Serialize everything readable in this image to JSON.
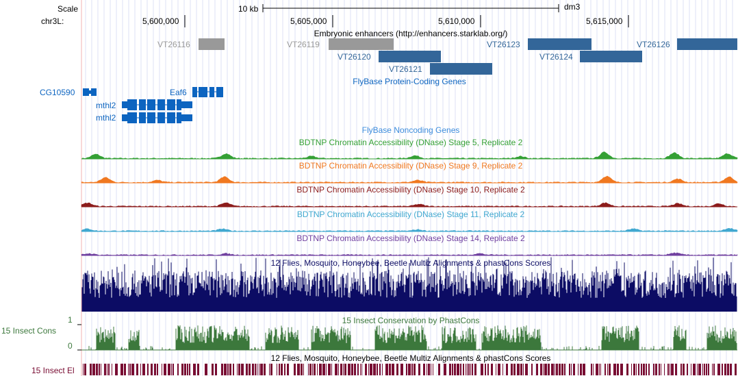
{
  "ruler": {
    "scale_label": "Scale",
    "chrom_label": "chr3L:",
    "scale_bar_label": "10 kb",
    "assembly": "dm3",
    "ticks": [
      "5,600,000",
      "5,605,000",
      "5,610,000",
      "5,615,000"
    ]
  },
  "tracks": {
    "enhancers": {
      "title": "Embryonic enhancers (http://enhancers.starklab.org/)",
      "features": [
        {
          "name": "VT26116",
          "color": "#999999"
        },
        {
          "name": "VT26119",
          "color": "#999999"
        },
        {
          "name": "VT26120",
          "color": "#336699"
        },
        {
          "name": "VT26121",
          "color": "#336699"
        },
        {
          "name": "VT26123",
          "color": "#336699"
        },
        {
          "name": "VT26124",
          "color": "#336699"
        },
        {
          "name": "VT26126",
          "color": "#336699"
        }
      ]
    },
    "protein_genes": {
      "title": "FlyBase Protein-Coding Genes",
      "color": "#0c64c0",
      "genes": [
        {
          "name": "CG10590"
        },
        {
          "name": "Eaf6"
        },
        {
          "name": "mthl2"
        },
        {
          "name": "mthl2"
        }
      ]
    },
    "noncoding": {
      "title": "FlyBase Noncoding Genes",
      "color": "#3c8cdc"
    },
    "dnase": [
      {
        "title": "BDTNP Chromatin Accessibility (DNase) Stage 5, Replicate 2",
        "color": "#34a035"
      },
      {
        "title": "BDTNP Chromatin Accessibility (DNase) Stage 9, Replicate 2",
        "color": "#f07820"
      },
      {
        "title": "BDTNP Chromatin Accessibility (DNase) Stage 10, Replicate 2",
        "color": "#8c1c1c"
      },
      {
        "title": "BDTNP Chromatin Accessibility (DNase) Stage 11, Replicate 2",
        "color": "#40a8d0"
      },
      {
        "title": "BDTNP Chromatin Accessibility (DNase) Stage 14, Replicate 2",
        "color": "#7040a0"
      }
    ],
    "multiz": {
      "title": "12 Flies, Mosquito, Honeybee, Beetle Multiz Alignments & phastCons Scores",
      "color": "#0c0c64"
    },
    "cons": {
      "title": "15 Insect Conservation by PhastCons",
      "side_label": "15 Insect Cons",
      "axis_max": "1",
      "axis_min": "0",
      "color": "#3c783c"
    },
    "elements": {
      "title": "12 Flies, Mosquito, Honeybee, Beetle Multiz Alignments & phastCons Scores",
      "side_label": "15 Insect El",
      "color": "#780c32"
    }
  }
}
